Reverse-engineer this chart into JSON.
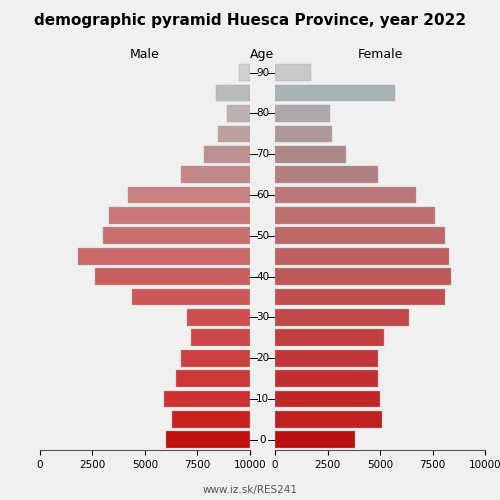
{
  "title": "demographic pyramid Huesca Province, year 2022",
  "age_groups": [
    0,
    5,
    10,
    15,
    20,
    25,
    30,
    35,
    40,
    45,
    50,
    55,
    60,
    65,
    70,
    75,
    80,
    85,
    90
  ],
  "age_tick_labels": [
    "0",
    "",
    "10",
    "",
    "20",
    "",
    "30",
    "",
    "40",
    "",
    "50",
    "",
    "60",
    "",
    "70",
    "",
    "80",
    "",
    "90"
  ],
  "male_vals": [
    4000,
    3700,
    4100,
    3500,
    3300,
    2800,
    3000,
    5600,
    7400,
    8200,
    7000,
    6700,
    5800,
    3300,
    2200,
    1500,
    1100,
    1600,
    500
  ],
  "female_vals": [
    3800,
    5100,
    5000,
    4900,
    4900,
    5200,
    6400,
    8100,
    8400,
    8300,
    8100,
    7600,
    6700,
    4900,
    3400,
    2700,
    2600,
    5700,
    1700
  ],
  "male_colors": [
    "#c01010",
    "#cc2020",
    "#cc3030",
    "#cc3838",
    "#cc4040",
    "#cc4848",
    "#cc5050",
    "#cc5858",
    "#c86060",
    "#c86868",
    "#c87070",
    "#c87878",
    "#c88080",
    "#c08888",
    "#bc9090",
    "#bca0a0",
    "#bcb0b0",
    "#b8bcbc",
    "#d0d0d0"
  ],
  "female_vals_colors": [
    "#b81010",
    "#c02020",
    "#c02828",
    "#c03030",
    "#c03838",
    "#c04040",
    "#c04848",
    "#c05050",
    "#bc5858",
    "#bc6060",
    "#bc6868",
    "#bc7070",
    "#bc7878",
    "#b08080",
    "#ac8888",
    "#ac9898",
    "#aca8a8",
    "#a8b4b4",
    "#c8c8c8"
  ],
  "xlim": 10000,
  "xticks": [
    0,
    2500,
    5000,
    7500,
    10000
  ],
  "xtick_labels_left": [
    "10000",
    "7500",
    "5000",
    "2500",
    "0"
  ],
  "xtick_labels_right": [
    "0",
    "2500",
    "5000",
    "7500",
    "10000"
  ],
  "label_male": "Male",
  "label_female": "Female",
  "label_age": "Age",
  "footer": "www.iz.sk/RES241",
  "title_fontsize": 11,
  "bg_color": "#f0f0f0"
}
